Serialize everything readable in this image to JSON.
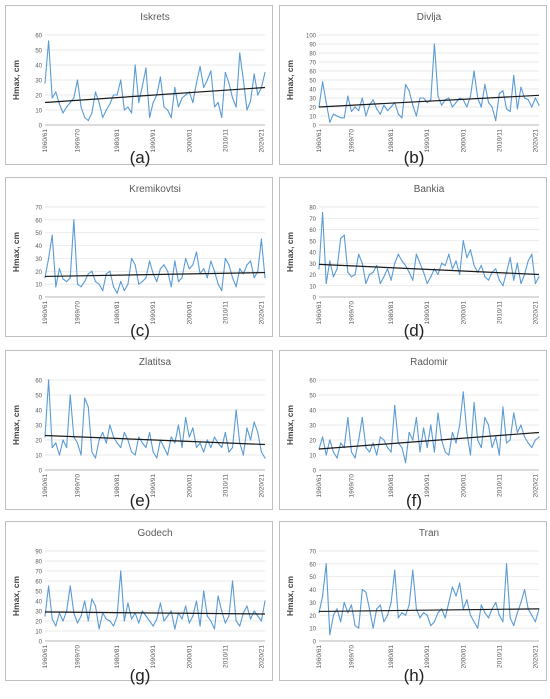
{
  "colors": {
    "series": "#5b9bd5",
    "trend": "#1a1a1a",
    "frame": "#bfbfbf",
    "grid": "#e3e3e3",
    "text": "#595959"
  },
  "chart_data": [
    {
      "type": "line",
      "title": "Iskrets",
      "label": "(a)",
      "ylim": [
        0,
        60
      ],
      "yticks": [
        0,
        10,
        20,
        30,
        40,
        50,
        60
      ],
      "xlabel": "",
      "ylabel": "Hmax, cm",
      "x_start": 1960,
      "x_end": 2021,
      "xtick_labels": [
        "1960/61",
        "1969/70",
        "1980/81",
        "1990/91",
        "2000/01",
        "2010/11",
        "2020/21"
      ],
      "xtick_years": [
        1960,
        1969,
        1980,
        1990,
        2000,
        2010,
        2020
      ],
      "trend": [
        15,
        25
      ],
      "values": [
        28,
        56,
        18,
        22,
        14,
        8,
        12,
        15,
        18,
        30,
        12,
        5,
        3,
        8,
        22,
        15,
        5,
        10,
        14,
        20,
        20,
        30,
        10,
        12,
        8,
        40,
        15,
        26,
        38,
        5,
        15,
        20,
        32,
        12,
        10,
        5,
        25,
        12,
        18,
        20,
        22,
        15,
        28,
        39,
        25,
        30,
        36,
        12,
        15,
        5,
        35,
        28,
        18,
        12,
        48,
        30,
        10,
        16,
        34,
        20,
        25,
        35
      ]
    },
    {
      "type": "line",
      "title": "Divlja",
      "label": "(b)",
      "ylim": [
        0,
        100
      ],
      "yticks": [
        0,
        10,
        20,
        30,
        40,
        50,
        60,
        70,
        80,
        90,
        100
      ],
      "xlabel": "",
      "ylabel": "Hmax, cm",
      "x_start": 1960,
      "x_end": 2021,
      "xtick_labels": [
        "1960/61",
        "1969/70",
        "1980/81",
        "1990/91",
        "2000/01",
        "2010/11",
        "2020/21"
      ],
      "xtick_years": [
        1960,
        1969,
        1980,
        1990,
        2000,
        2010,
        2020
      ],
      "trend": [
        20,
        33
      ],
      "values": [
        20,
        48,
        25,
        3,
        12,
        10,
        8,
        8,
        32,
        15,
        20,
        16,
        30,
        10,
        22,
        28,
        18,
        12,
        22,
        16,
        20,
        25,
        12,
        8,
        45,
        38,
        22,
        10,
        30,
        30,
        25,
        28,
        90,
        32,
        22,
        28,
        30,
        20,
        25,
        30,
        28,
        20,
        32,
        60,
        30,
        20,
        45,
        25,
        20,
        5,
        35,
        38,
        18,
        15,
        55,
        18,
        42,
        30,
        28,
        20,
        30,
        22
      ]
    },
    {
      "type": "line",
      "title": "Kremikovtsi",
      "label": "(c)",
      "ylim": [
        0,
        70
      ],
      "yticks": [
        0,
        10,
        20,
        30,
        40,
        50,
        60,
        70
      ],
      "xlabel": "",
      "ylabel": "Hmax, cm",
      "x_start": 1960,
      "x_end": 2021,
      "xtick_labels": [
        "1960/61",
        "1969/70",
        "1980/81",
        "1990/91",
        "2000/01",
        "2010/11",
        "2020/21"
      ],
      "xtick_years": [
        1960,
        1969,
        1980,
        1990,
        2000,
        2010,
        2020
      ],
      "trend": [
        16,
        19
      ],
      "values": [
        15,
        30,
        48,
        8,
        22,
        14,
        12,
        15,
        60,
        10,
        8,
        12,
        18,
        20,
        12,
        10,
        5,
        18,
        20,
        8,
        3,
        12,
        5,
        10,
        30,
        25,
        10,
        12,
        15,
        28,
        18,
        12,
        22,
        25,
        20,
        8,
        28,
        12,
        15,
        30,
        22,
        25,
        35,
        18,
        22,
        15,
        28,
        20,
        10,
        5,
        30,
        25,
        15,
        8,
        22,
        18,
        25,
        28,
        15,
        20,
        45,
        15
      ]
    },
    {
      "type": "line",
      "title": "Bankia",
      "label": "(d)",
      "ylim": [
        0,
        80
      ],
      "yticks": [
        0,
        10,
        20,
        30,
        40,
        50,
        60,
        70,
        80
      ],
      "xlabel": "",
      "ylabel": "Hmax, cm",
      "x_start": 1960,
      "x_end": 2021,
      "xtick_labels": [
        "1960/61",
        "1969/70",
        "1980/81",
        "1990/91",
        "2000/01",
        "2010/11",
        "2020/21"
      ],
      "xtick_years": [
        1960,
        1969,
        1980,
        1990,
        2000,
        2010,
        2020
      ],
      "trend": [
        29,
        20
      ],
      "values": [
        25,
        75,
        12,
        32,
        18,
        25,
        52,
        55,
        22,
        18,
        20,
        38,
        30,
        12,
        20,
        22,
        28,
        12,
        18,
        25,
        15,
        30,
        38,
        32,
        28,
        22,
        15,
        38,
        30,
        22,
        12,
        18,
        25,
        20,
        30,
        28,
        38,
        25,
        32,
        20,
        50,
        35,
        42,
        28,
        22,
        28,
        18,
        15,
        22,
        25,
        15,
        10,
        22,
        35,
        15,
        30,
        12,
        20,
        32,
        38,
        12,
        18
      ]
    },
    {
      "type": "line",
      "title": "Zlatitsa",
      "label": "(e)",
      "ylim": [
        0,
        60
      ],
      "yticks": [
        0,
        10,
        20,
        30,
        40,
        50,
        60
      ],
      "xlabel": "",
      "ylabel": "Hmax, cm",
      "x_start": 1960,
      "x_end": 2021,
      "xtick_labels": [
        "1960/61",
        "1969/70",
        "1980/81",
        "1990/91",
        "2000/01",
        "2010/11",
        "2020/21"
      ],
      "xtick_years": [
        1960,
        1969,
        1980,
        1990,
        2000,
        2010,
        2020
      ],
      "trend": [
        23,
        17
      ],
      "values": [
        22,
        60,
        15,
        18,
        10,
        20,
        15,
        50,
        22,
        18,
        10,
        48,
        42,
        12,
        8,
        20,
        25,
        18,
        30,
        22,
        18,
        15,
        25,
        20,
        12,
        10,
        22,
        18,
        15,
        25,
        12,
        8,
        20,
        15,
        10,
        22,
        18,
        30,
        15,
        35,
        22,
        28,
        15,
        18,
        12,
        20,
        15,
        22,
        18,
        15,
        25,
        12,
        15,
        40,
        18,
        10,
        28,
        20,
        32,
        25,
        12,
        8
      ]
    },
    {
      "type": "line",
      "title": "Radomir",
      "label": "(f)",
      "ylim": [
        0,
        60
      ],
      "yticks": [
        0,
        10,
        20,
        30,
        40,
        50,
        60
      ],
      "xlabel": "",
      "ylabel": "Hmax, cm",
      "x_start": 1960,
      "x_end": 2021,
      "xtick_labels": [
        "1960/61",
        "1969/70",
        "1980/81",
        "1990/91",
        "2000/01",
        "2010/11",
        "2020/21"
      ],
      "xtick_years": [
        1960,
        1969,
        1980,
        1990,
        2000,
        2010,
        2020
      ],
      "trend": [
        14,
        25
      ],
      "values": [
        14,
        22,
        10,
        20,
        12,
        8,
        18,
        15,
        35,
        12,
        8,
        20,
        35,
        15,
        12,
        18,
        10,
        22,
        20,
        15,
        12,
        43,
        18,
        15,
        5,
        25,
        20,
        35,
        12,
        28,
        15,
        30,
        12,
        38,
        20,
        12,
        10,
        25,
        18,
        30,
        52,
        25,
        10,
        45,
        20,
        15,
        35,
        30,
        15,
        22,
        10,
        42,
        18,
        20,
        38,
        25,
        30,
        22,
        18,
        15,
        20,
        22
      ]
    },
    {
      "type": "line",
      "title": "Godech",
      "label": "(g)",
      "ylim": [
        0,
        90
      ],
      "yticks": [
        0,
        10,
        20,
        30,
        40,
        50,
        60,
        70,
        80,
        90
      ],
      "xlabel": "",
      "ylabel": "Hmax, cm",
      "x_start": 1960,
      "x_end": 2021,
      "xtick_labels": [
        "1960/61",
        "1969/70",
        "1980/81",
        "1990/91",
        "2000/01",
        "2010/11",
        "2020/21"
      ],
      "xtick_years": [
        1960,
        1969,
        1980,
        1990,
        2000,
        2010,
        2020
      ],
      "trend": [
        29,
        27
      ],
      "values": [
        25,
        55,
        22,
        15,
        28,
        20,
        30,
        55,
        28,
        18,
        25,
        40,
        20,
        42,
        35,
        12,
        28,
        22,
        20,
        15,
        25,
        70,
        20,
        38,
        22,
        28,
        18,
        30,
        25,
        20,
        15,
        22,
        38,
        20,
        25,
        30,
        12,
        28,
        22,
        35,
        18,
        25,
        40,
        15,
        50,
        25,
        20,
        12,
        45,
        30,
        18,
        25,
        60,
        20,
        15,
        28,
        35,
        22,
        30,
        25,
        20,
        40
      ]
    },
    {
      "type": "line",
      "title": "Tran",
      "label": "(h)",
      "ylim": [
        0,
        70
      ],
      "yticks": [
        0,
        10,
        20,
        30,
        40,
        50,
        60,
        70
      ],
      "xlabel": "",
      "ylabel": "Hmax, cm",
      "x_start": 1960,
      "x_end": 2021,
      "xtick_labels": [
        "1960/61",
        "1969/70",
        "1980/81",
        "1990/91",
        "2000/01",
        "2010/11",
        "2020/21"
      ],
      "xtick_years": [
        1960,
        1969,
        1980,
        1990,
        2000,
        2010,
        2020
      ],
      "trend": [
        23,
        25
      ],
      "values": [
        22,
        35,
        60,
        5,
        20,
        25,
        15,
        30,
        22,
        28,
        12,
        10,
        40,
        38,
        25,
        10,
        25,
        28,
        15,
        20,
        30,
        55,
        18,
        22,
        20,
        28,
        55,
        25,
        18,
        22,
        20,
        12,
        15,
        22,
        25,
        18,
        30,
        42,
        35,
        45,
        25,
        32,
        20,
        15,
        10,
        28,
        22,
        18,
        25,
        30,
        20,
        15,
        60,
        18,
        12,
        22,
        30,
        40,
        25,
        20,
        15,
        25
      ]
    }
  ]
}
